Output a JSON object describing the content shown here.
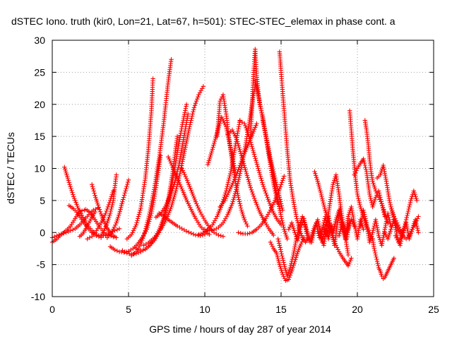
{
  "chart_data": {
    "type": "scatter",
    "title": "dSTEC Iono. truth (kir0, Lon=21, Lat=67, h=501): STEC-STEC_elemax in phase cont. a",
    "xlabel": "GPS time / hours of day 287 of year 2014",
    "ylabel": "dSTEC  / TECUs",
    "xlim": [
      0,
      25
    ],
    "ylim": [
      -10,
      30
    ],
    "xticks": [
      0,
      5,
      10,
      15,
      20,
      25
    ],
    "yticks": [
      -10,
      -5,
      0,
      5,
      10,
      15,
      20,
      25,
      30
    ],
    "grid": true,
    "marker": "+",
    "color": "#ff0000",
    "series": [
      {
        "x": [
          0.0,
          0.3,
          0.6,
          0.9,
          1.2,
          1.5,
          1.8,
          2.1
        ],
        "y": [
          -1.5,
          -1.0,
          -0.3,
          0.3,
          1.0,
          2.2,
          3.3,
          3.5
        ]
      },
      {
        "x": [
          0.0,
          0.3,
          0.6,
          0.9,
          1.2,
          1.5,
          1.8,
          2.1,
          2.4,
          2.7,
          3.0
        ],
        "y": [
          -0.8,
          -0.5,
          -0.2,
          0.0,
          0.3,
          0.6,
          1.2,
          2.0,
          2.8,
          3.5,
          3.8
        ]
      },
      {
        "x": [
          0.8,
          1.1,
          1.4,
          1.7,
          2.0,
          2.3,
          2.6,
          2.9,
          3.2,
          3.5,
          3.8,
          4.1,
          4.4
        ],
        "y": [
          10.2,
          7.8,
          5.6,
          3.8,
          2.4,
          1.2,
          0.3,
          -0.3,
          -0.6,
          -0.4,
          0.0,
          0.3,
          0.6
        ]
      },
      {
        "x": [
          1.1,
          1.4,
          1.7,
          2.0,
          2.3,
          2.6,
          2.9,
          3.2
        ],
        "y": [
          4.2,
          3.7,
          2.9,
          1.8,
          0.8,
          0.0,
          -0.5,
          -0.8
        ]
      },
      {
        "x": [
          2.2,
          2.5,
          2.8,
          3.1,
          3.4,
          3.7,
          4.0
        ],
        "y": [
          3.6,
          3.1,
          2.0,
          0.9,
          0.0,
          -0.4,
          -0.7
        ]
      },
      {
        "x": [
          1.8,
          2.0,
          2.2,
          2.4,
          2.6,
          2.8
        ],
        "y": [
          -0.6,
          -0.2,
          0.6,
          1.5,
          2.4,
          3.2
        ]
      },
      {
        "x": [
          2.6,
          2.8,
          3.0,
          3.2,
          3.4,
          3.6,
          3.8,
          4.0,
          4.2
        ],
        "y": [
          7.5,
          5.8,
          4.3,
          2.9,
          1.7,
          0.7,
          0.0,
          -0.5,
          -0.8
        ]
      },
      {
        "x": [
          2.3,
          2.6,
          2.9,
          3.2,
          3.5,
          3.8,
          4.0
        ],
        "y": [
          -1.0,
          -0.6,
          0.3,
          1.5,
          3.0,
          5.0,
          6.5
        ]
      },
      {
        "x": [
          3.2,
          3.4,
          3.6,
          3.8,
          4.0,
          4.2
        ],
        "y": [
          -0.5,
          0.3,
          1.5,
          3.0,
          5.0,
          9.0
        ]
      },
      {
        "x": [
          3.6,
          3.8,
          4.0,
          4.2,
          4.4,
          4.6,
          4.8,
          5.0
        ],
        "y": [
          -0.8,
          -0.3,
          0.5,
          1.5,
          3.0,
          4.8,
          6.5,
          8.2
        ]
      },
      {
        "x": [
          3.8,
          4.1,
          4.4,
          4.7,
          5.0,
          5.3,
          5.6,
          5.9,
          6.2,
          6.5,
          6.8,
          7.1
        ],
        "y": [
          -2.2,
          -2.7,
          -3.0,
          -3.1,
          -2.9,
          -2.5,
          -1.8,
          -0.8,
          0.5,
          3.0,
          7.0,
          12.0
        ]
      },
      {
        "x": [
          4.6,
          4.9,
          5.2,
          5.5,
          5.8,
          6.1,
          6.4,
          6.7,
          7.0,
          7.3,
          7.6,
          7.9,
          8.2
        ],
        "y": [
          -2.8,
          -3.2,
          -3.4,
          -3.3,
          -3.0,
          -2.6,
          -2.0,
          -1.2,
          0.0,
          2.0,
          5.0,
          9.5,
          15.0
        ]
      },
      {
        "x": [
          5.2,
          5.5,
          5.8,
          6.1,
          6.4,
          6.7,
          7.0,
          7.3,
          7.6,
          7.8
        ],
        "y": [
          -3.6,
          -3.0,
          -1.8,
          0.3,
          3.2,
          7.0,
          11.5,
          17.0,
          23.5,
          27.0
        ]
      },
      {
        "x": [
          4.9,
          5.2,
          5.5,
          5.8,
          6.1,
          6.3,
          6.5,
          6.6
        ],
        "y": [
          -1.0,
          -0.3,
          1.2,
          3.8,
          8.5,
          13.0,
          19.0,
          24.0
        ]
      },
      {
        "x": [
          5.5,
          5.8,
          6.1,
          6.4,
          6.7,
          7.0,
          7.3,
          7.6,
          7.9,
          8.2,
          8.5,
          8.8
        ],
        "y": [
          -2.4,
          -2.8,
          -2.6,
          -2.0,
          -1.0,
          0.4,
          2.2,
          4.8,
          8.2,
          12.5,
          16.5,
          20.0
        ]
      },
      {
        "x": [
          6.0,
          6.3,
          6.6,
          6.9,
          7.2,
          7.5,
          7.8,
          8.1,
          8.4,
          8.7,
          9.0,
          9.3,
          9.6,
          9.9
        ],
        "y": [
          -2.0,
          -1.6,
          -1.0,
          -0.2,
          0.8,
          2.2,
          4.0,
          6.5,
          9.5,
          13.0,
          16.5,
          19.5,
          21.5,
          22.8
        ]
      },
      {
        "x": [
          6.8,
          7.1,
          7.4,
          7.7,
          8.0,
          8.3,
          8.6,
          8.9
        ],
        "y": [
          2.4,
          2.9,
          4.0,
          5.5,
          7.5,
          10.5,
          14.5,
          18.5
        ]
      },
      {
        "x": [
          7.6,
          7.9,
          8.2,
          8.5,
          8.8,
          9.1,
          9.4,
          9.7,
          10.0,
          10.3
        ],
        "y": [
          11.8,
          10.2,
          8.4,
          6.8,
          5.1,
          3.6,
          2.2,
          1.0,
          0.2,
          -0.3
        ]
      },
      {
        "x": [
          7.0,
          7.3,
          7.6,
          7.9,
          8.2,
          8.5,
          8.8,
          9.1,
          9.4,
          9.7,
          10.0
        ],
        "y": [
          3.0,
          2.6,
          2.0,
          1.5,
          1.0,
          0.6,
          0.2,
          -0.1,
          -0.4,
          -0.5,
          -0.3
        ]
      },
      {
        "x": [
          8.5,
          8.8,
          9.1,
          9.4,
          9.7,
          10.0,
          10.3,
          10.6,
          10.9,
          11.2
        ],
        "y": [
          10.0,
          8.4,
          6.6,
          4.8,
          3.2,
          1.9,
          0.8,
          0.0,
          -0.4,
          -0.6
        ]
      },
      {
        "x": [
          9.6,
          9.9,
          10.2,
          10.5,
          10.8,
          11.1,
          11.4,
          11.7,
          12.0,
          12.3
        ],
        "y": [
          -0.3,
          -0.1,
          0.4,
          1.2,
          2.5,
          4.2,
          6.5,
          9.5,
          13.5,
          17.5
        ]
      },
      {
        "x": [
          10.0,
          10.3,
          10.6,
          10.9,
          11.2,
          11.5,
          11.8,
          12.1,
          12.4,
          12.7,
          13.0,
          13.3
        ],
        "y": [
          0.5,
          0.3,
          0.4,
          0.8,
          1.5,
          2.8,
          4.5,
          7.0,
          10.2,
          14.0,
          18.5,
          23.0
        ]
      },
      {
        "x": [
          10.2,
          10.5,
          10.8,
          11.1,
          11.4,
          11.7,
          12.0
        ],
        "y": [
          10.6,
          13.0,
          15.5,
          18.0,
          16.5,
          13.0,
          9.5
        ]
      },
      {
        "x": [
          10.8,
          11.0,
          11.2,
          11.4,
          11.6,
          11.8,
          12.0,
          12.2,
          12.4,
          12.6,
          12.8
        ],
        "y": [
          15.0,
          20.5,
          21.5,
          18.5,
          14.5,
          11.0,
          8.0,
          5.5,
          3.5,
          2.0,
          1.0
        ]
      },
      {
        "x": [
          11.5,
          11.8,
          12.1,
          12.4,
          12.7,
          13.0,
          13.3,
          13.6,
          13.9,
          14.2,
          14.5
        ],
        "y": [
          15.3,
          16.0,
          14.5,
          12.0,
          9.5,
          7.0,
          5.0,
          3.2,
          1.8,
          0.6,
          -0.4
        ]
      },
      {
        "x": [
          12.3,
          12.6,
          12.9,
          13.2,
          13.5,
          13.8,
          14.1,
          14.4,
          14.7,
          15.0
        ],
        "y": [
          17.4,
          17.0,
          15.0,
          12.5,
          10.0,
          7.5,
          5.5,
          3.6,
          2.2,
          1.2
        ]
      },
      {
        "x": [
          13.0,
          13.1,
          13.2,
          13.3,
          13.4,
          13.5,
          13.6,
          13.7,
          13.8,
          13.9,
          14.0,
          14.2,
          14.4,
          14.6,
          14.8
        ],
        "y": [
          15.0,
          20.0,
          25.0,
          28.6,
          24.5,
          22.0,
          20.0,
          19.0,
          18.0,
          16.5,
          15.0,
          12.0,
          9.0,
          6.5,
          4.5
        ]
      },
      {
        "x": [
          13.3,
          13.5,
          13.7,
          13.9,
          14.1,
          14.3,
          14.5,
          14.7,
          14.9,
          15.1
        ],
        "y": [
          23.8,
          21.5,
          19.0,
          16.5,
          14.0,
          11.5,
          9.5,
          7.5,
          5.5,
          3.5
        ]
      },
      {
        "x": [
          13.8,
          14.0,
          14.2,
          14.4,
          14.6,
          14.8,
          15.0,
          15.2,
          15.4
        ],
        "y": [
          17.5,
          15.0,
          12.5,
          10.0,
          7.5,
          5.0,
          2.5,
          0.5,
          -1.0
        ]
      },
      {
        "x": [
          11.0,
          11.3,
          11.6,
          11.9,
          12.2,
          12.5,
          12.8,
          13.1,
          13.4
        ],
        "y": [
          4.0,
          5.0,
          6.5,
          8.0,
          9.8,
          11.8,
          13.5,
          15.2,
          17.0
        ]
      },
      {
        "x": [
          12.2,
          12.5,
          12.8,
          13.1,
          13.4,
          13.7,
          14.0,
          14.3,
          14.6,
          14.9,
          15.2
        ],
        "y": [
          0.0,
          -0.2,
          -0.2,
          0.0,
          0.5,
          1.2,
          2.2,
          3.5,
          5.0,
          6.8,
          8.8
        ]
      },
      {
        "x": [
          14.9,
          15.0,
          15.1,
          15.2,
          15.3,
          15.4,
          15.5,
          15.6,
          15.8,
          16.0,
          16.2,
          16.4,
          16.6,
          16.8
        ],
        "y": [
          28.2,
          25.0,
          22.0,
          19.0,
          16.0,
          13.0,
          10.5,
          8.0,
          5.0,
          2.5,
          0.5,
          -0.8,
          -1.5,
          -0.8
        ]
      },
      {
        "x": [
          14.3,
          14.5,
          14.7,
          14.9,
          15.1,
          15.3,
          15.5,
          15.7,
          15.9,
          16.1,
          16.3,
          16.5
        ],
        "y": [
          -1.5,
          -2.5,
          -3.2,
          -5.0,
          -6.5,
          -7.5,
          -7.3,
          -6.0,
          -4.5,
          -3.0,
          -1.8,
          -0.8
        ]
      },
      {
        "x": [
          14.8,
          15.0,
          15.2,
          15.4,
          15.6,
          15.8,
          16.0,
          16.2,
          16.4,
          16.6,
          16.8,
          17.0
        ],
        "y": [
          -1.0,
          -3.0,
          -5.0,
          -6.8,
          -5.5,
          -3.5,
          -1.0,
          1.0,
          2.5,
          1.0,
          -0.5,
          -1.5
        ]
      },
      {
        "x": [
          15.5,
          15.7,
          15.9,
          16.1,
          16.3,
          16.5,
          16.7,
          16.9,
          17.1,
          17.3,
          17.5,
          17.7,
          17.9,
          18.1,
          18.3,
          18.5
        ],
        "y": [
          0.5,
          1.5,
          0.0,
          -1.2,
          0.8,
          2.2,
          -0.5,
          -1.5,
          0.3,
          1.5,
          -0.8,
          0.5,
          2.5,
          -1.0,
          1.2,
          -2.0
        ]
      },
      {
        "x": [
          17.2,
          17.4,
          17.6,
          17.8,
          18.0,
          18.2,
          18.4,
          18.6,
          18.8,
          19.0,
          19.2,
          19.4,
          19.6
        ],
        "y": [
          9.5,
          8.0,
          6.2,
          4.3,
          2.5,
          0.8,
          -0.8,
          -2.0,
          -3.0,
          -3.8,
          -4.5,
          -5.2,
          -4.0
        ]
      },
      {
        "x": [
          17.0,
          17.2,
          17.4,
          17.6,
          17.8,
          18.0,
          18.2,
          18.4,
          18.6,
          18.8,
          19.0,
          19.2,
          19.4
        ],
        "y": [
          -1.5,
          0.5,
          2.0,
          0.0,
          -2.0,
          1.0,
          4.5,
          7.5,
          9.0,
          6.0,
          2.0,
          -0.5,
          -3.5
        ]
      },
      {
        "x": [
          17.5,
          17.7,
          17.9,
          18.1,
          18.3,
          18.5,
          18.7,
          18.9,
          19.1,
          19.3,
          19.5
        ],
        "y": [
          0.0,
          -1.5,
          1.0,
          2.5,
          0.5,
          -2.0,
          1.5,
          4.0,
          1.0,
          -1.0,
          2.0
        ]
      },
      {
        "x": [
          18.8,
          19.0,
          19.2,
          19.4,
          19.6,
          19.8,
          20.0,
          20.2,
          20.4
        ],
        "y": [
          -0.5,
          1.5,
          -1.0,
          2.5,
          4.0,
          1.5,
          -1.0,
          2.0,
          0.5
        ]
      },
      {
        "x": [
          19.5,
          19.6,
          19.7,
          19.8,
          19.9,
          20.0,
          20.2,
          20.4,
          20.6,
          20.8,
          21.0
        ],
        "y": [
          19.0,
          16.0,
          13.0,
          10.5,
          8.0,
          6.0,
          4.0,
          2.5,
          1.0,
          0.0,
          -1.0
        ]
      },
      {
        "x": [
          19.8,
          20.0,
          20.2,
          20.4,
          20.6,
          20.8,
          21.0,
          21.2,
          21.4,
          21.6,
          21.8
        ],
        "y": [
          9.0,
          10.0,
          10.8,
          11.5,
          9.5,
          6.0,
          4.0,
          5.5,
          6.5,
          4.5,
          2.5
        ]
      },
      {
        "x": [
          20.5,
          20.6,
          20.7,
          20.8,
          20.9,
          21.0,
          21.2,
          21.4,
          21.6,
          21.8,
          22.0
        ],
        "y": [
          17.5,
          16.0,
          14.0,
          11.5,
          9.5,
          8.0,
          6.5,
          5.5,
          4.5,
          3.0,
          1.5
        ]
      },
      {
        "x": [
          20.2,
          20.4,
          20.6,
          20.8,
          21.0,
          21.2,
          21.4,
          21.6,
          21.8,
          22.0,
          22.2
        ],
        "y": [
          1.0,
          3.5,
          1.5,
          -1.5,
          0.0,
          2.0,
          -0.5,
          -2.0,
          0.5,
          3.0,
          1.0
        ]
      },
      {
        "x": [
          21.0,
          21.1,
          21.2,
          21.3,
          21.4,
          21.5,
          21.6,
          21.7,
          21.8,
          21.9,
          22.0,
          22.1,
          22.2,
          22.3,
          22.4
        ],
        "y": [
          -1.0,
          -2.5,
          -3.5,
          -4.5,
          -5.5,
          -6.0,
          -6.8,
          -7.2,
          -7.0,
          -6.5,
          -6.0,
          -5.5,
          -5.0,
          -4.5,
          -4.0
        ]
      },
      {
        "x": [
          21.3,
          21.5,
          21.7,
          21.9,
          22.1,
          22.3,
          22.5,
          22.7,
          22.9
        ],
        "y": [
          8.5,
          9.0,
          10.5,
          8.0,
          5.0,
          3.0,
          1.5,
          0.3,
          -0.5
        ]
      },
      {
        "x": [
          21.8,
          22.0,
          22.2,
          22.4,
          22.6,
          22.8,
          23.0,
          23.2,
          23.4,
          23.6,
          23.8,
          24.0
        ],
        "y": [
          0.0,
          -1.0,
          0.5,
          2.0,
          -0.5,
          -2.0,
          0.0,
          1.5,
          -1.0,
          0.5,
          2.0,
          0.0
        ]
      },
      {
        "x": [
          22.5,
          22.7,
          22.9,
          23.1,
          23.3,
          23.5,
          23.7,
          23.9
        ],
        "y": [
          -0.5,
          -1.5,
          -0.5,
          1.0,
          3.0,
          5.0,
          6.5,
          5.0
        ]
      },
      {
        "x": [
          22.2,
          22.4,
          22.6,
          22.8,
          23.0,
          23.2,
          23.4,
          23.6,
          23.8,
          24.0
        ],
        "y": [
          4.0,
          2.5,
          1.5,
          0.5,
          -0.5,
          -1.0,
          -0.5,
          0.5,
          1.5,
          2.5
        ]
      },
      {
        "x": [
          17.8,
          18.0,
          18.2,
          18.4,
          18.6,
          18.8,
          19.0,
          19.2,
          19.4,
          19.6,
          19.8
        ],
        "y": [
          0.5,
          -0.5,
          1.0,
          0.0,
          2.0,
          3.5,
          1.0,
          -0.5,
          0.5,
          2.0,
          1.0
        ]
      }
    ]
  }
}
